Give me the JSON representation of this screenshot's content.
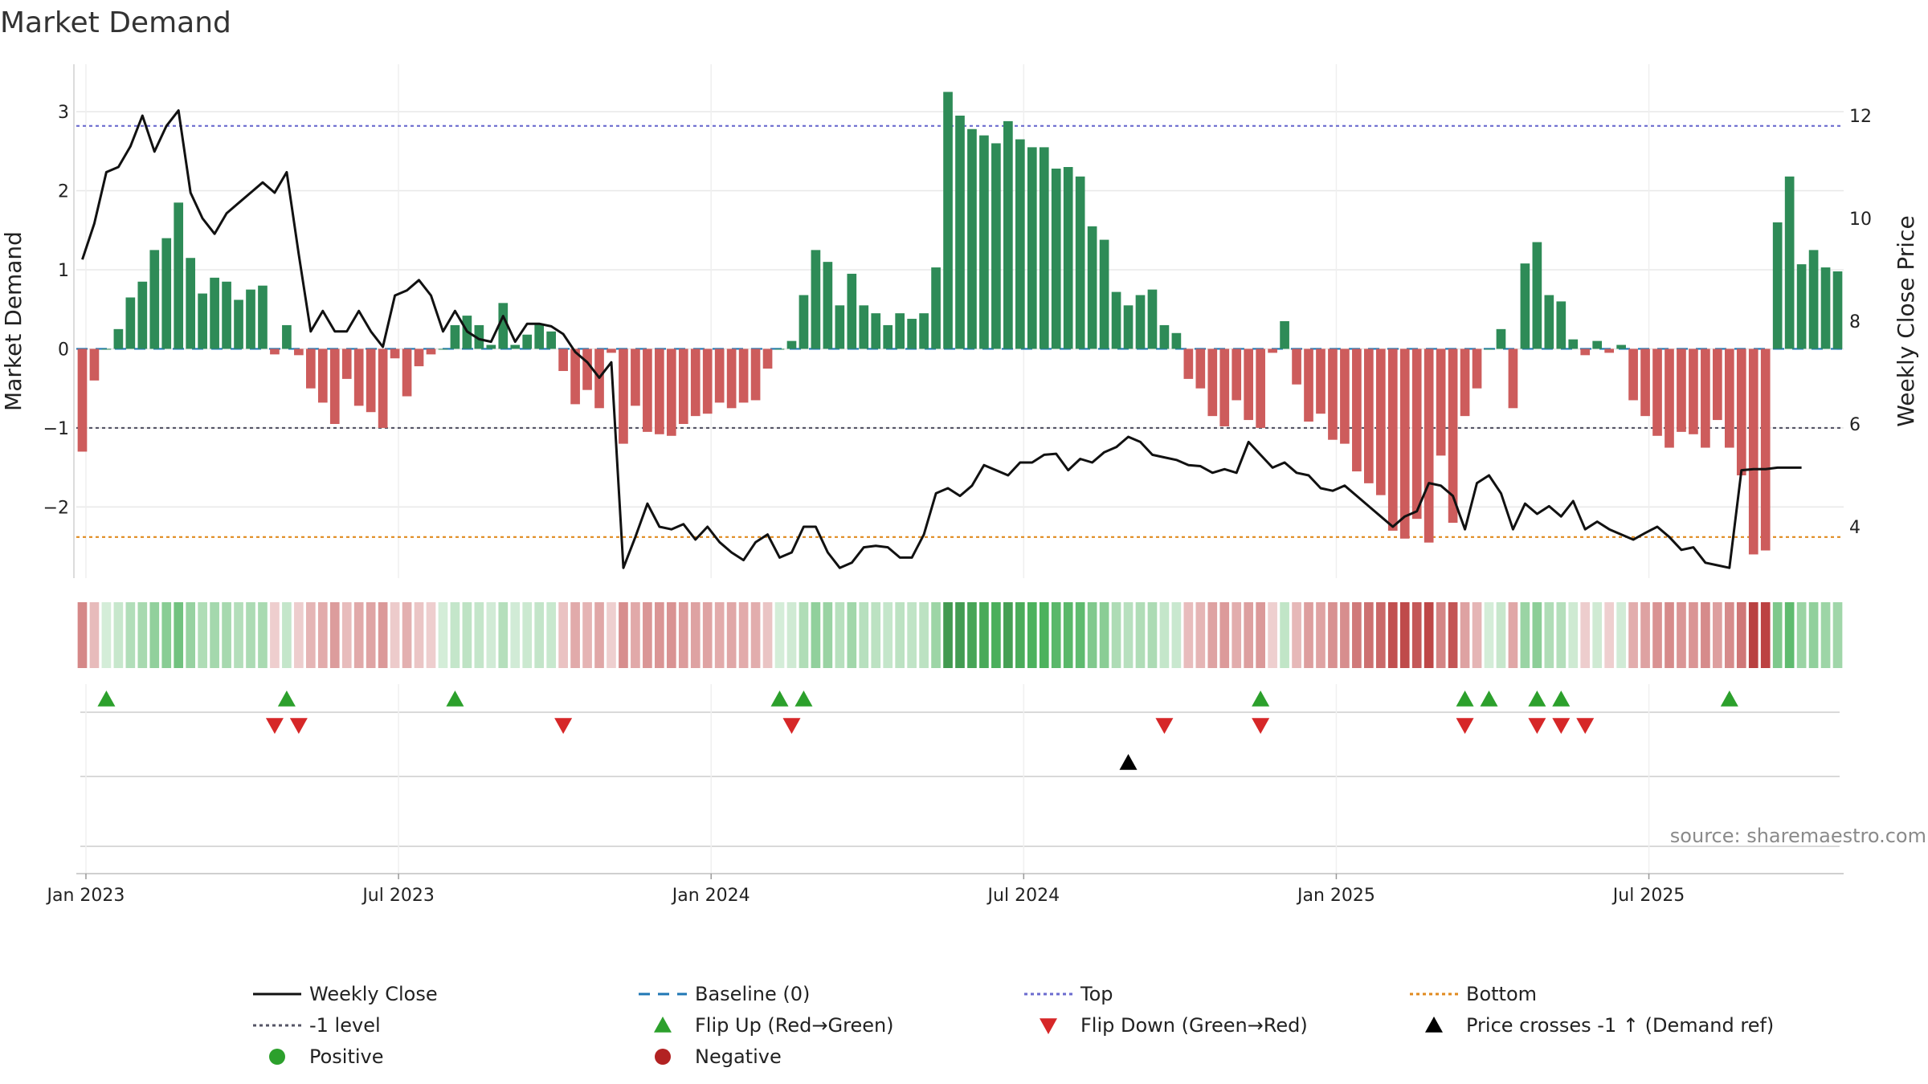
{
  "chart_data": {
    "type": "bar",
    "title": "Market Demand",
    "ylabel": "Market Demand",
    "y2label": "Weekly Close Price",
    "ylim": [
      -2.9,
      3.6
    ],
    "y2lim": [
      3.0,
      13.0
    ],
    "yticks": [
      3,
      2,
      1,
      0,
      -1,
      -2
    ],
    "y2ticks": [
      12,
      10,
      8,
      6,
      4
    ],
    "date_ticks": [
      {
        "label": "Jan 2023",
        "week": 0.8
      },
      {
        "label": "Jul 2023",
        "week": 26.8
      },
      {
        "label": "Jan 2024",
        "week": 52.8
      },
      {
        "label": "Jul 2024",
        "week": 78.8
      },
      {
        "label": "Jan 2025",
        "week": 104.8
      },
      {
        "label": "Jul 2025",
        "week": 130.8
      }
    ],
    "series": [
      {
        "name": "Market Demand",
        "values": [
          -1.3,
          -0.4,
          0.0,
          0.25,
          0.65,
          0.85,
          1.25,
          1.4,
          1.85,
          1.15,
          0.7,
          0.9,
          0.85,
          0.62,
          0.75,
          0.8,
          -0.07,
          0.3,
          -0.08,
          -0.5,
          -0.68,
          -0.95,
          -0.38,
          -0.72,
          -0.8,
          -1.0,
          -0.12,
          -0.6,
          -0.22,
          -0.07,
          0.0,
          0.3,
          0.42,
          0.3,
          0.05,
          0.58,
          0.05,
          0.18,
          0.32,
          0.22,
          -0.28,
          -0.7,
          -0.52,
          -0.75,
          -0.05,
          -1.2,
          -0.72,
          -1.05,
          -1.08,
          -1.1,
          -0.95,
          -0.85,
          -0.82,
          -0.68,
          -0.75,
          -0.68,
          -0.65,
          -0.25,
          0.0,
          0.1,
          0.68,
          1.25,
          1.1,
          0.55,
          0.95,
          0.55,
          0.45,
          0.3,
          0.45,
          0.38,
          0.45,
          1.03,
          3.25,
          2.95,
          2.78,
          2.7,
          2.6,
          2.88,
          2.65,
          2.55,
          2.55,
          2.28,
          2.3,
          2.18,
          1.55,
          1.38,
          0.72,
          0.55,
          0.68,
          0.75,
          0.3,
          0.2,
          -0.38,
          -0.5,
          -0.85,
          -0.98,
          -0.65,
          -0.9,
          -1.0,
          -0.05,
          0.35,
          -0.45,
          -0.92,
          -0.82,
          -1.15,
          -1.2,
          -1.55,
          -1.7,
          -1.85,
          -2.3,
          -2.4,
          -2.15,
          -2.45,
          -1.35,
          -2.2,
          -0.85,
          -0.5,
          0.0,
          0.25,
          -0.75,
          1.08,
          1.35,
          0.68,
          0.6,
          0.12,
          -0.08,
          0.1,
          -0.05,
          0.05,
          -0.65,
          -0.85,
          -1.1,
          -1.25,
          -1.05,
          -1.08,
          -1.25,
          -0.9,
          -1.25,
          -1.6,
          -2.6,
          -2.55,
          1.6,
          2.18,
          1.07,
          1.25,
          1.03,
          0.98
        ]
      },
      {
        "name": "Weekly Close",
        "values": [
          9.2,
          9.9,
          10.9,
          11.0,
          11.4,
          12.0,
          11.3,
          11.8,
          12.1,
          10.5,
          10.0,
          9.7,
          10.1,
          10.3,
          10.5,
          10.7,
          10.5,
          10.9,
          9.3,
          7.8,
          8.2,
          7.8,
          7.8,
          8.2,
          7.8,
          7.5,
          8.5,
          8.6,
          8.8,
          8.5,
          7.8,
          8.2,
          7.8,
          7.65,
          7.6,
          8.1,
          7.6,
          7.95,
          7.95,
          7.9,
          7.75,
          7.4,
          7.2,
          6.9,
          7.2,
          3.2,
          3.8,
          4.45,
          4.0,
          3.95,
          4.05,
          3.75,
          4.0,
          3.7,
          3.5,
          3.35,
          3.7,
          3.85,
          3.4,
          3.5,
          4.0,
          4.0,
          3.5,
          3.2,
          3.3,
          3.6,
          3.63,
          3.6,
          3.4,
          3.4,
          3.85,
          4.65,
          4.75,
          4.6,
          4.8,
          5.2,
          5.1,
          5.0,
          5.25,
          5.25,
          5.4,
          5.42,
          5.1,
          5.32,
          5.25,
          5.45,
          5.55,
          5.75,
          5.65,
          5.4,
          5.35,
          5.3,
          5.2,
          5.18,
          5.05,
          5.12,
          5.05,
          5.65,
          5.4,
          5.15,
          5.25,
          5.05,
          5.0,
          4.75,
          4.7,
          4.8,
          4.6,
          4.4,
          4.2,
          4.0,
          4.2,
          4.3,
          4.85,
          4.8,
          4.6,
          3.95,
          4.85,
          5.0,
          4.65,
          3.95,
          4.45,
          4.25,
          4.4,
          4.2,
          4.5,
          3.95,
          4.1,
          3.95,
          3.85,
          3.75,
          3.88,
          4.0,
          3.8,
          3.55,
          3.6,
          3.3,
          3.25,
          3.2,
          5.1,
          5.12,
          5.12,
          5.15,
          5.15,
          5.15
        ]
      }
    ],
    "reference_lines": {
      "top": 2.82,
      "minus_one": -1.0,
      "bottom": -2.38,
      "baseline": 0
    },
    "flip_up_weeks": [
      2,
      17,
      31,
      58,
      60,
      98,
      115,
      117,
      121,
      123,
      137
    ],
    "flip_down_weeks": [
      16,
      18,
      40,
      59,
      90,
      98,
      115,
      121,
      123,
      125
    ],
    "price_cross_weeks": [
      87
    ],
    "legend": [
      {
        "label": "Weekly Close",
        "kind": "line-solid",
        "color": "#111111"
      },
      {
        "label": "Baseline (0)",
        "kind": "line-dash",
        "color": "#1f77b4"
      },
      {
        "label": "Top",
        "kind": "line-dot",
        "color": "#6b6bcf"
      },
      {
        "label": "Bottom",
        "kind": "line-dot",
        "color": "#e08a1e"
      },
      {
        "label": "-1 level",
        "kind": "line-dot",
        "color": "#555566"
      },
      {
        "label": "Flip Up (Red→Green)",
        "kind": "tri-up",
        "color": "#2ca02c"
      },
      {
        "label": "Flip Down (Green→Red)",
        "kind": "tri-down",
        "color": "#d62728"
      },
      {
        "label": "Price crosses -1 ↑ (Demand ref)",
        "kind": "tri-up",
        "color": "#000000"
      },
      {
        "label": "Positive",
        "kind": "dot",
        "color": "#2ca02c"
      },
      {
        "label": "Negative",
        "kind": "dot",
        "color": "#b22222"
      }
    ],
    "source": "source: sharemaestro.com"
  },
  "colors": {
    "positive_bar": "#2e8b57",
    "negative_bar": "#cd5c5c",
    "price_line": "#111111",
    "grid": "#e8e8e8"
  }
}
